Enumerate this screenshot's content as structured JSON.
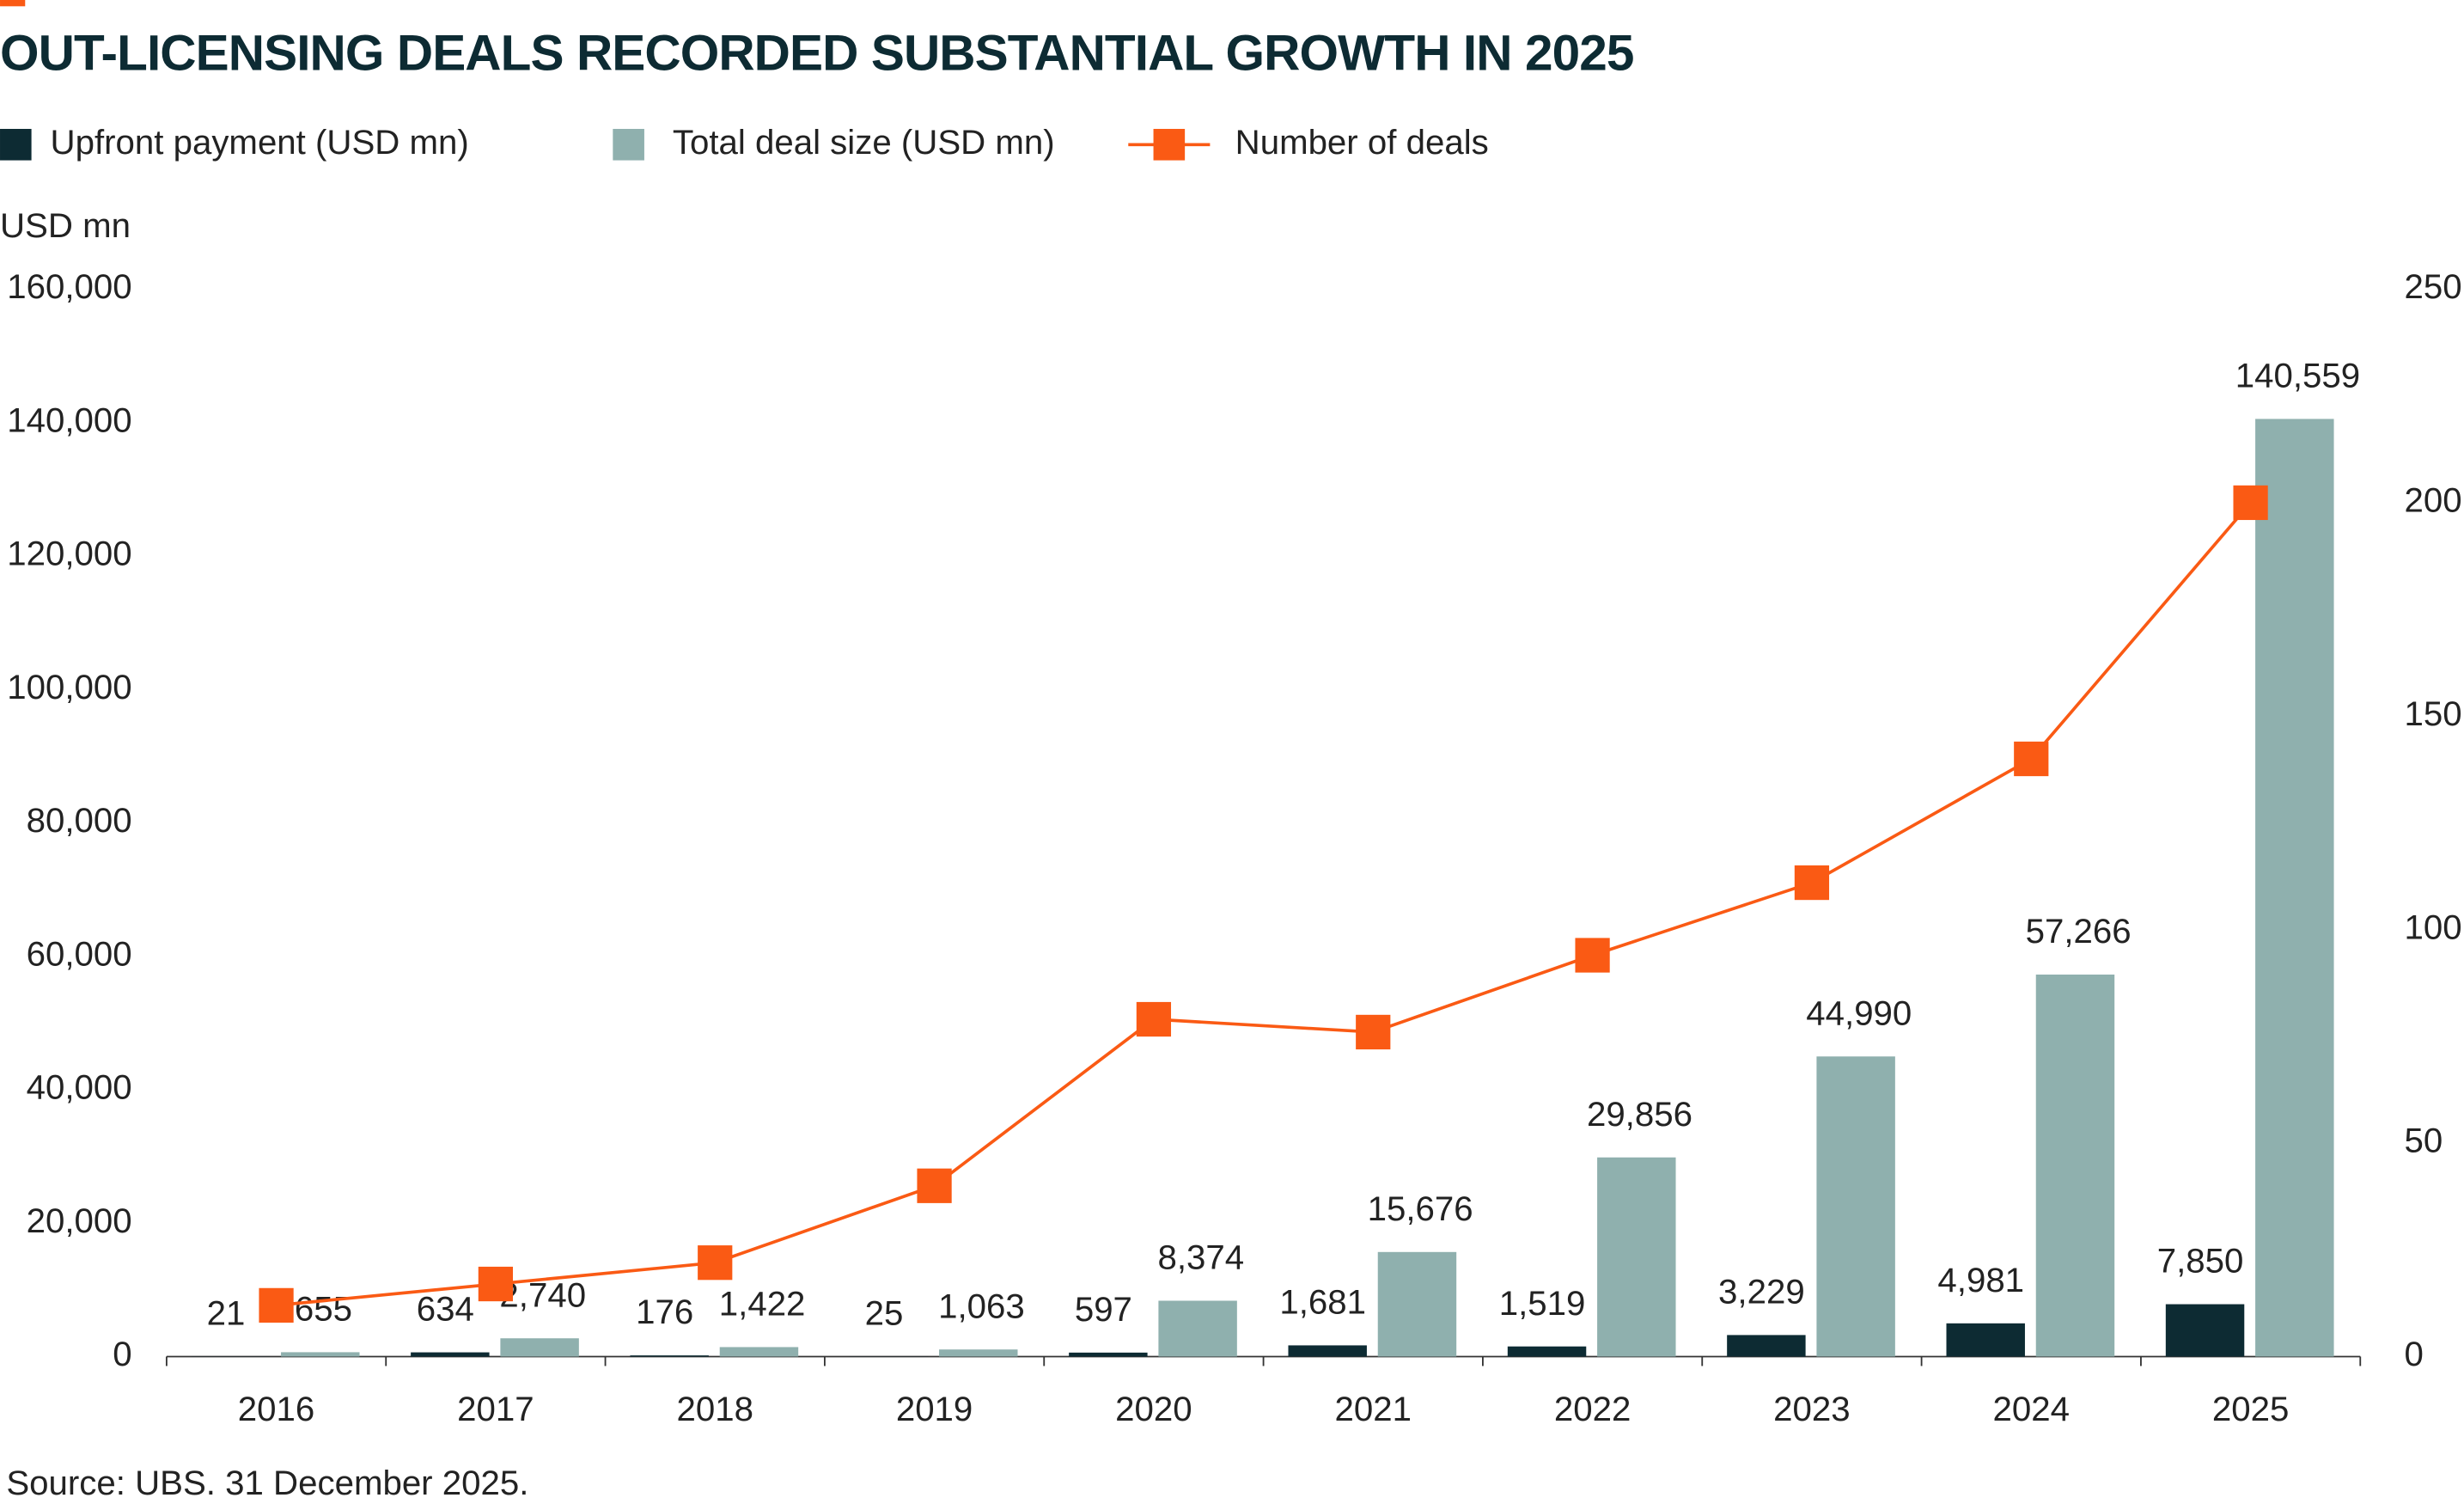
{
  "chart_data": {
    "type": "bar",
    "title": "OUT-LICENSING DEALS RECORDED SUBSTANTIAL GROWTH IN 2025",
    "y_label": "USD mn",
    "source": "Source: UBS. 31 December 2025.",
    "categories": [
      "2016",
      "2017",
      "2018",
      "2019",
      "2020",
      "2021",
      "2022",
      "2023",
      "2024",
      "2025"
    ],
    "series": [
      {
        "name": "Upfront payment (USD mn)",
        "color": "#0d2b33",
        "values": [
          21,
          634,
          176,
          25,
          597,
          1681,
          1519,
          3229,
          4981,
          7850
        ],
        "value_labels": [
          "21",
          "634",
          "176",
          "25",
          "597",
          "1,681",
          "1,519",
          "3,229",
          "4,981",
          "7,850"
        ]
      },
      {
        "name": "Total deal size (USD mn)",
        "color": "#8fb0ae",
        "values": [
          655,
          2740,
          1422,
          1063,
          8374,
          15676,
          29856,
          44990,
          57266,
          140559
        ],
        "value_labels": [
          "655",
          "2,740",
          "1,422",
          "1,063",
          "8,374",
          "15,676",
          "29,856",
          "44,990",
          "57,266",
          "140,559"
        ]
      },
      {
        "name": "Number of deals",
        "color": "#fa5a14",
        "type": "line",
        "axis": "y2",
        "values": [
          12,
          17,
          22,
          40,
          79,
          76,
          94,
          111,
          140,
          200
        ]
      }
    ],
    "ylim": [
      0,
      160000
    ],
    "yticks": [
      0,
      {
        "value": 20000,
        "label": "20,000"
      },
      {
        "value": 40000,
        "label": "40,000"
      },
      {
        "value": 60000,
        "label": "60,000"
      },
      {
        "value": 80000,
        "label": "80,000"
      },
      {
        "value": 100000,
        "label": "100,000"
      },
      {
        "value": 120000,
        "label": "120,000"
      },
      {
        "value": 140000,
        "label": "140,000"
      },
      {
        "value": 160000,
        "label": "160,000"
      }
    ],
    "y2lim": [
      0,
      250
    ],
    "y2ticks": [
      0,
      50,
      100,
      150,
      200,
      250
    ],
    "grid": false
  }
}
